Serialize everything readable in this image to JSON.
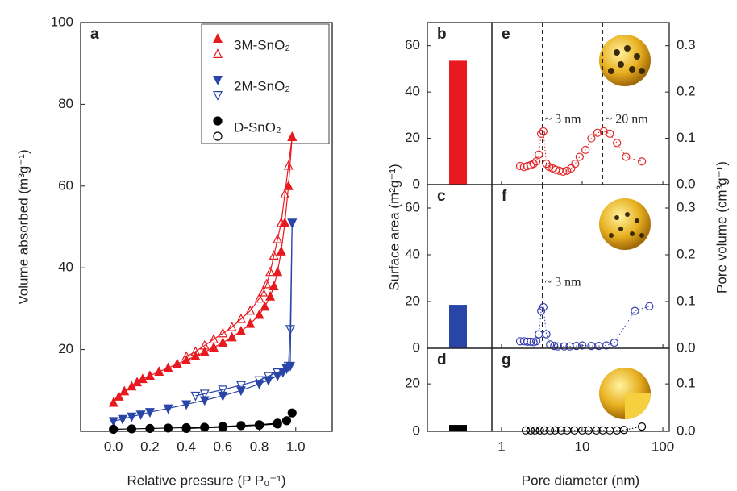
{
  "chart_data": [
    {
      "type": "line",
      "panel_label": "a",
      "xlabel": "Relative pressure (P P₀⁻¹)",
      "ylabel": "Volume absorbed (m³g⁻¹)",
      "xlim": [
        -0.18,
        1.2
      ],
      "ylim": [
        0,
        100
      ],
      "xticks": [
        {
          "value": 0,
          "label": "0.0"
        },
        0.2,
        0.4,
        0.6,
        0.8,
        {
          "value": 1,
          "label": "1.0"
        }
      ],
      "yticks": [
        20,
        40,
        60,
        80,
        100
      ],
      "legend": "upper right",
      "series": [
        {
          "name": "3M-SnO₂",
          "color": "#e8191f",
          "marker": "triangle-up",
          "x": [
            0.0,
            0.03,
            0.06,
            0.1,
            0.13,
            0.16,
            0.2,
            0.25,
            0.3,
            0.35,
            0.4,
            0.45,
            0.5,
            0.55,
            0.6,
            0.65,
            0.7,
            0.75,
            0.8,
            0.83,
            0.86,
            0.88,
            0.9,
            0.92,
            0.94,
            0.96,
            0.98
          ],
          "values": [
            7,
            8.5,
            9.8,
            11,
            12,
            12.8,
            13.6,
            14.6,
            15.5,
            16.5,
            17.4,
            18.4,
            19.4,
            20.5,
            21.7,
            23,
            24.5,
            26.3,
            28.5,
            30.5,
            33,
            35.5,
            39,
            44,
            51,
            60,
            72
          ],
          "x_desorption": [
            0.98,
            0.96,
            0.94,
            0.92,
            0.9,
            0.88,
            0.86,
            0.84,
            0.82,
            0.8,
            0.75,
            0.7,
            0.65,
            0.6,
            0.55,
            0.5,
            0.45,
            0.4
          ],
          "values_desorption": [
            72,
            65,
            58,
            51,
            47,
            43,
            39,
            36,
            34,
            32.5,
            29.5,
            27.5,
            25.5,
            24,
            22.5,
            21,
            19.5,
            18.3
          ]
        },
        {
          "name": "2M-SnO₂",
          "color": "#2a45a8",
          "marker": "triangle-down",
          "x": [
            0.0,
            0.05,
            0.1,
            0.15,
            0.2,
            0.3,
            0.4,
            0.5,
            0.6,
            0.7,
            0.8,
            0.85,
            0.9,
            0.93,
            0.95,
            0.97,
            0.98
          ],
          "values": [
            2.5,
            3,
            3.6,
            4.1,
            4.7,
            5.6,
            6.6,
            7.6,
            8.7,
            10,
            11.6,
            12.5,
            13.6,
            14.5,
            15.3,
            16,
            51
          ],
          "x_desorption": [
            0.98,
            0.97,
            0.96,
            0.95,
            0.9,
            0.85,
            0.8,
            0.7,
            0.6,
            0.5,
            0.45
          ],
          "values_desorption": [
            51,
            25,
            16,
            15.5,
            14.4,
            13.5,
            12.5,
            11.3,
            10.2,
            9.2,
            8.7
          ]
        },
        {
          "name": "D-SnO₂",
          "color": "#000000",
          "marker": "circle",
          "x": [
            0.0,
            0.1,
            0.2,
            0.3,
            0.4,
            0.5,
            0.6,
            0.7,
            0.8,
            0.9,
            0.95,
            0.98
          ],
          "values": [
            0.5,
            0.6,
            0.7,
            0.8,
            0.9,
            1.0,
            1.2,
            1.4,
            1.6,
            2.0,
            2.6,
            4.5
          ],
          "x_desorption": [
            0.9,
            0.8,
            0.6,
            0.4
          ],
          "values_desorption": [
            1.8,
            1.5,
            1.0,
            0.7
          ]
        }
      ]
    },
    {
      "type": "bar",
      "panel_label": "b",
      "categories": [
        null
      ],
      "values": [
        53.5
      ],
      "color": "#e8191f",
      "ylim": [
        0,
        70
      ],
      "yticks": [
        0,
        20,
        40,
        60
      ]
    },
    {
      "type": "bar",
      "panel_label": "c",
      "ylabel": "Surface area (m²g⁻¹)",
      "categories": [
        null
      ],
      "values": [
        18.6
      ],
      "color": "#2a45a8",
      "ylim": [
        0,
        70
      ],
      "yticks": [
        0,
        20,
        40,
        60
      ]
    },
    {
      "type": "bar",
      "panel_label": "d",
      "categories": [
        null
      ],
      "values": [
        2.7
      ],
      "color": "#000000",
      "ylim": [
        0,
        35
      ],
      "yticks": [
        0,
        20
      ]
    },
    {
      "type": "scatter",
      "panel_label": "e",
      "log_x": true,
      "xlim": [
        0.76,
        120
      ],
      "y2lim": [
        0,
        0.35
      ],
      "y2ticks": [
        {
          "value": 0,
          "label": "0.0"
        },
        0.1,
        0.2,
        0.3
      ],
      "color": "#e0282a",
      "vlines": [
        3.2,
        18
      ],
      "annotations": [
        "~ 3 nm",
        "~ 20 nm"
      ],
      "x": [
        1.7,
        1.9,
        2.1,
        2.3,
        2.5,
        2.7,
        2.9,
        3.1,
        3.3,
        3.6,
        3.9,
        4.3,
        4.7,
        5.2,
        5.8,
        6.5,
        7.3,
        8.2,
        9.3,
        11,
        13,
        15.5,
        18.5,
        22,
        27,
        35,
        55
      ],
      "values": [
        0.04,
        0.038,
        0.04,
        0.042,
        0.045,
        0.05,
        0.065,
        0.11,
        0.115,
        0.045,
        0.038,
        0.035,
        0.032,
        0.03,
        0.028,
        0.03,
        0.035,
        0.045,
        0.06,
        0.075,
        0.1,
        0.112,
        0.115,
        0.11,
        0.09,
        0.06,
        0.05
      ]
    },
    {
      "type": "scatter",
      "panel_label": "f",
      "y2label": "Pore volume (cm³g⁻¹)",
      "log_x": true,
      "xlim": [
        0.76,
        120
      ],
      "y2lim": [
        0,
        0.35
      ],
      "y2ticks": [
        {
          "value": 0,
          "label": "0.0"
        },
        0.1,
        0.2,
        0.3
      ],
      "color": "#3a3fb0",
      "vlines": [
        3.2
      ],
      "annotations": [
        "~ 3 nm"
      ],
      "x": [
        1.7,
        1.9,
        2.1,
        2.3,
        2.5,
        2.7,
        2.9,
        3.1,
        3.3,
        3.6,
        4,
        4.5,
        5,
        6,
        7,
        8.5,
        10,
        13,
        16,
        20,
        25,
        45,
        68
      ],
      "values": [
        0.015,
        0.015,
        0.014,
        0.014,
        0.013,
        0.015,
        0.03,
        0.08,
        0.088,
        0.03,
        0.008,
        0.005,
        0.004,
        0.004,
        0.004,
        0.005,
        0.006,
        0.005,
        0.005,
        0.006,
        0.012,
        0.08,
        0.09
      ]
    },
    {
      "type": "scatter",
      "panel_label": "g",
      "xlabel": "Pore diameter (nm)",
      "log_x": true,
      "xlim": [
        0.76,
        120
      ],
      "xticks": [
        1,
        10,
        100
      ],
      "y2lim": [
        0,
        0.175
      ],
      "y2ticks": [
        {
          "value": 0,
          "label": "0.0"
        },
        0.1
      ],
      "color": "#000000",
      "x": [
        2,
        2.3,
        2.6,
        3,
        3.4,
        4,
        4.6,
        5.5,
        6.5,
        8,
        10,
        12,
        15,
        18,
        22,
        27,
        33,
        55
      ],
      "values": [
        0.002,
        0.002,
        0.002,
        0.002,
        0.002,
        0.002,
        0.002,
        0.002,
        0.002,
        0.002,
        0.002,
        0.002,
        0.002,
        0.002,
        0.002,
        0.002,
        0.003,
        0.01
      ]
    }
  ]
}
